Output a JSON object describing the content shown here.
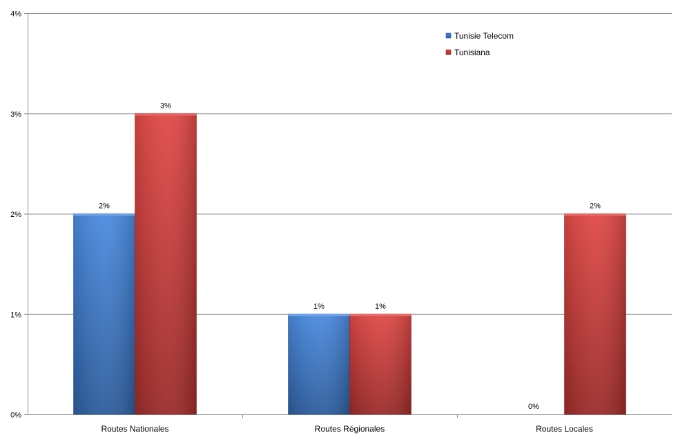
{
  "chart_data": {
    "type": "bar",
    "categories": [
      "Routes Nationales",
      "Routes Régionales",
      "Routes Locales"
    ],
    "series": [
      {
        "name": "Tunisie Telecom",
        "values": [
          2,
          1,
          0
        ],
        "labels": [
          "2%",
          "1%",
          "0%"
        ],
        "color": "#3f7fd3"
      },
      {
        "name": "Tunisiana",
        "values": [
          3,
          1,
          2
        ],
        "labels": [
          "3%",
          "1%",
          "2%"
        ],
        "color": "#d43d3a"
      }
    ],
    "ylim": [
      0,
      4
    ],
    "yticks": [
      {
        "value": 0,
        "label": "0%"
      },
      {
        "value": 1,
        "label": "1%"
      },
      {
        "value": 2,
        "label": "2%"
      },
      {
        "value": 3,
        "label": "3%"
      },
      {
        "value": 4,
        "label": "4%"
      }
    ],
    "grid": true,
    "legend_position": "top-right"
  }
}
